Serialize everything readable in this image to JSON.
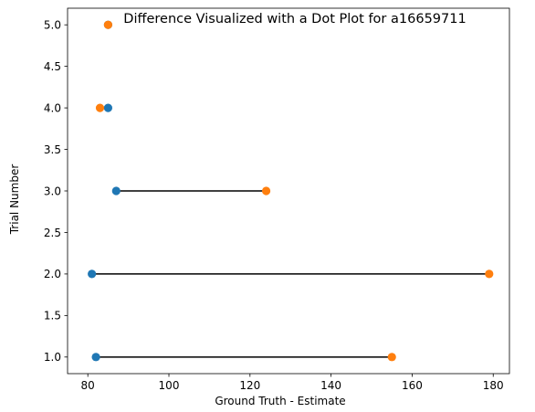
{
  "chart_data": {
    "type": "scatter",
    "title": "Difference Visualized with a Dot Plot for a16659711",
    "xlabel": "Ground Truth - Estimate",
    "ylabel": "Trial Number",
    "xlim": [
      75,
      184
    ],
    "ylim": [
      0.8,
      5.2
    ],
    "xticks": [
      80,
      100,
      120,
      140,
      160,
      180
    ],
    "xtick_labels": [
      "80",
      "100",
      "120",
      "140",
      "160",
      "180"
    ],
    "yticks": [
      1.0,
      1.5,
      2.0,
      2.5,
      3.0,
      3.5,
      4.0,
      4.5,
      5.0
    ],
    "ytick_labels": [
      "1.0",
      "1.5",
      "2.0",
      "2.5",
      "3.0",
      "3.5",
      "4.0",
      "4.5",
      "5.0"
    ],
    "grid": false,
    "connector_color": "#000000",
    "series": [
      {
        "color": "#1f77b4",
        "points": [
          {
            "x": 82,
            "y": 1
          },
          {
            "x": 81,
            "y": 2
          },
          {
            "x": 87,
            "y": 3
          },
          {
            "x": 85,
            "y": 4
          },
          {
            "x": 85,
            "y": 5
          }
        ]
      },
      {
        "color": "#ff7f0e",
        "points": [
          {
            "x": 155,
            "y": 1
          },
          {
            "x": 179,
            "y": 2
          },
          {
            "x": 124,
            "y": 3
          },
          {
            "x": 83,
            "y": 4
          },
          {
            "x": 85,
            "y": 5
          }
        ]
      }
    ]
  }
}
